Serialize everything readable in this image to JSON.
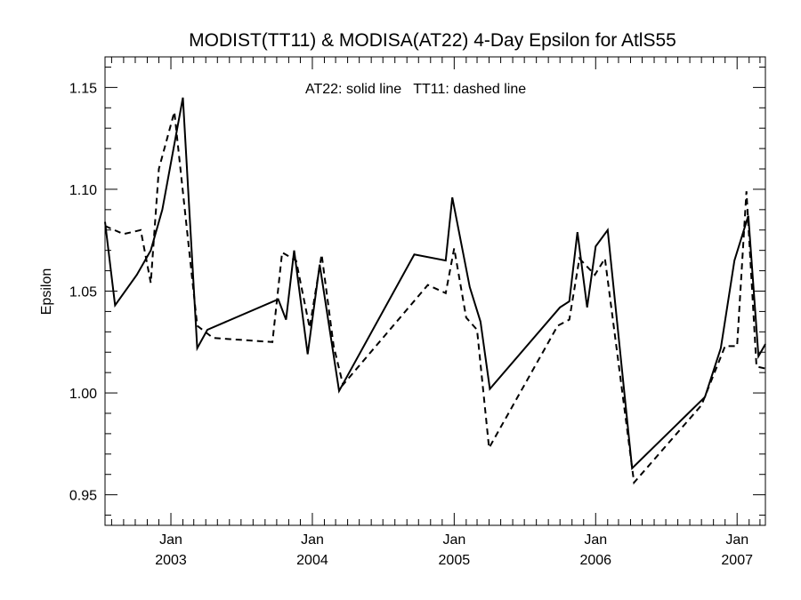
{
  "chart_data": {
    "type": "line",
    "title": "MODIST(TT11) & MODISA(AT22) 4-Day Epsilon for AtlS55",
    "ylabel": "Epsilon",
    "xlabel": "",
    "annotation": "AT22: solid line   TT11: dashed line",
    "xlim": [
      "2002-07-15",
      "2007-03-15"
    ],
    "ylim": [
      0.935,
      1.165
    ],
    "y_ticks": [
      0.95,
      1.0,
      1.05,
      1.1,
      1.15
    ],
    "y_tick_labels": [
      "0.95",
      "1.00",
      "1.05",
      "1.10",
      "1.15"
    ],
    "x_ticks": [
      {
        "date": "2003-01-01",
        "month": "Jan",
        "year": "2003"
      },
      {
        "date": "2004-01-01",
        "month": "Jan",
        "year": "2004"
      },
      {
        "date": "2005-01-01",
        "month": "Jan",
        "year": "2005"
      },
      {
        "date": "2006-01-01",
        "month": "Jan",
        "year": "2006"
      },
      {
        "date": "2007-01-01",
        "month": "Jan",
        "year": "2007"
      }
    ],
    "grid": false,
    "series": [
      {
        "name": "AT22",
        "style": "solid",
        "x": [
          "2002-07-15",
          "2002-08-10",
          "2002-10-05",
          "2002-11-10",
          "2002-12-10",
          "2003-02-01",
          "2003-03-10",
          "2003-04-05",
          "2003-10-05",
          "2003-10-25",
          "2003-11-15",
          "2003-12-20",
          "2004-01-20",
          "2004-03-10",
          "2004-09-20",
          "2004-12-10",
          "2004-12-27",
          "2005-02-10",
          "2005-03-10",
          "2005-04-03",
          "2005-10-01",
          "2005-10-25",
          "2005-11-15",
          "2005-12-10",
          "2006-01-01",
          "2006-02-01",
          "2006-04-05",
          "2006-10-10",
          "2006-11-20",
          "2006-12-25",
          "2007-01-30",
          "2007-02-25",
          "2007-03-15"
        ],
        "y": [
          1.084,
          1.043,
          1.058,
          1.07,
          1.09,
          1.145,
          1.022,
          1.031,
          1.046,
          1.036,
          1.07,
          1.019,
          1.063,
          1.001,
          1.068,
          1.065,
          1.096,
          1.052,
          1.035,
          1.002,
          1.042,
          1.045,
          1.079,
          1.042,
          1.072,
          1.08,
          0.963,
          0.998,
          1.022,
          1.065,
          1.087,
          1.018,
          1.024
        ]
      },
      {
        "name": "TT11",
        "style": "dashed",
        "x": [
          "2002-07-15",
          "2002-09-01",
          "2002-10-15",
          "2002-11-10",
          "2002-12-01",
          "2003-01-10",
          "2003-03-10",
          "2003-04-20",
          "2003-09-20",
          "2003-10-15",
          "2003-11-20",
          "2003-12-25",
          "2004-01-25",
          "2004-02-25",
          "2004-03-20",
          "2004-10-25",
          "2004-12-10",
          "2005-01-01",
          "2005-02-01",
          "2005-03-01",
          "2005-04-01",
          "2005-09-25",
          "2005-10-25",
          "2005-11-20",
          "2005-12-30",
          "2006-01-25",
          "2006-04-10",
          "2006-10-01",
          "2006-12-01",
          "2007-01-01",
          "2007-01-25",
          "2007-02-20",
          "2007-03-15"
        ],
        "y": [
          1.082,
          1.078,
          1.08,
          1.054,
          1.11,
          1.138,
          1.033,
          1.027,
          1.025,
          1.069,
          1.065,
          1.032,
          1.068,
          1.023,
          1.004,
          1.053,
          1.049,
          1.071,
          1.037,
          1.031,
          0.973,
          1.033,
          1.036,
          1.066,
          1.058,
          1.066,
          0.956,
          0.994,
          1.023,
          1.023,
          1.099,
          1.013,
          1.012
        ]
      }
    ]
  }
}
